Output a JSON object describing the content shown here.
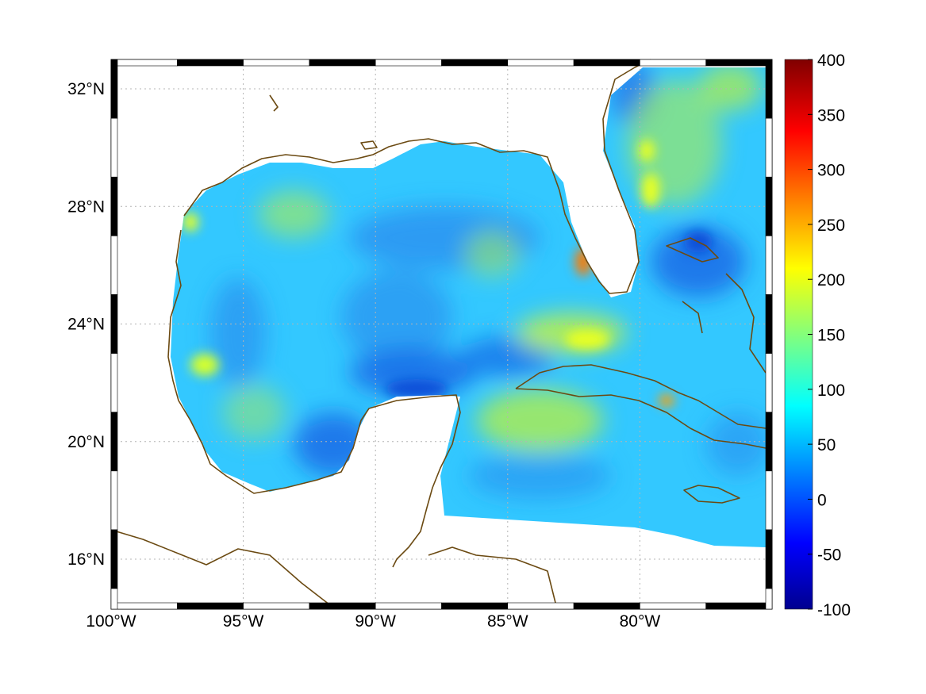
{
  "map": {
    "lon_range": [
      -100,
      -75
    ],
    "lat_range": [
      14.3,
      33
    ],
    "x_ticks": [
      {
        "lon": -100,
        "label": "100°W"
      },
      {
        "lon": -95,
        "label": "95°W"
      },
      {
        "lon": -90,
        "label": "90°W"
      },
      {
        "lon": -85,
        "label": "85°W"
      },
      {
        "lon": -80,
        "label": "80°W"
      }
    ],
    "y_ticks": [
      {
        "lat": 32,
        "label": "32°N"
      },
      {
        "lat": 28,
        "label": "28°N"
      },
      {
        "lat": 24,
        "label": "24°N"
      },
      {
        "lat": 20,
        "label": "20°N"
      },
      {
        "lat": 16,
        "label": "16°N"
      }
    ],
    "grid": "dotted",
    "frame_style": "alternating black/white border"
  },
  "colorbar": {
    "colormap": "jet",
    "range": [
      -100,
      400
    ],
    "tick_labels": [
      "400",
      "350",
      "300",
      "250",
      "200",
      "150",
      "100",
      "50",
      "0",
      "-50",
      "-100"
    ]
  },
  "colors": {
    "coastline": "#6b4a12",
    "field_typical": "#33c8ff",
    "field_low": "#1565e6",
    "field_high": "#d6ff2a",
    "field_max": "#ff7a00"
  },
  "field_features": [
    {
      "name": "high-near-southwest-Florida",
      "lon": -82.5,
      "lat": 26.3,
      "value": 260
    },
    {
      "name": "high-north-of-Cuba",
      "lon": -82.8,
      "lat": 23.6,
      "value": 190
    },
    {
      "name": "high-western-gulf",
      "lon": -96.5,
      "lat": 22.8,
      "value": 180
    },
    {
      "name": "high-central-cuba",
      "lon": -79.3,
      "lat": 21.5,
      "value": 250
    },
    {
      "name": "low-campeche",
      "lon": -88.5,
      "lat": 21.7,
      "value": 20
    },
    {
      "name": "low-bahamas",
      "lon": -78,
      "lat": 26.5,
      "value": 10
    }
  ]
}
